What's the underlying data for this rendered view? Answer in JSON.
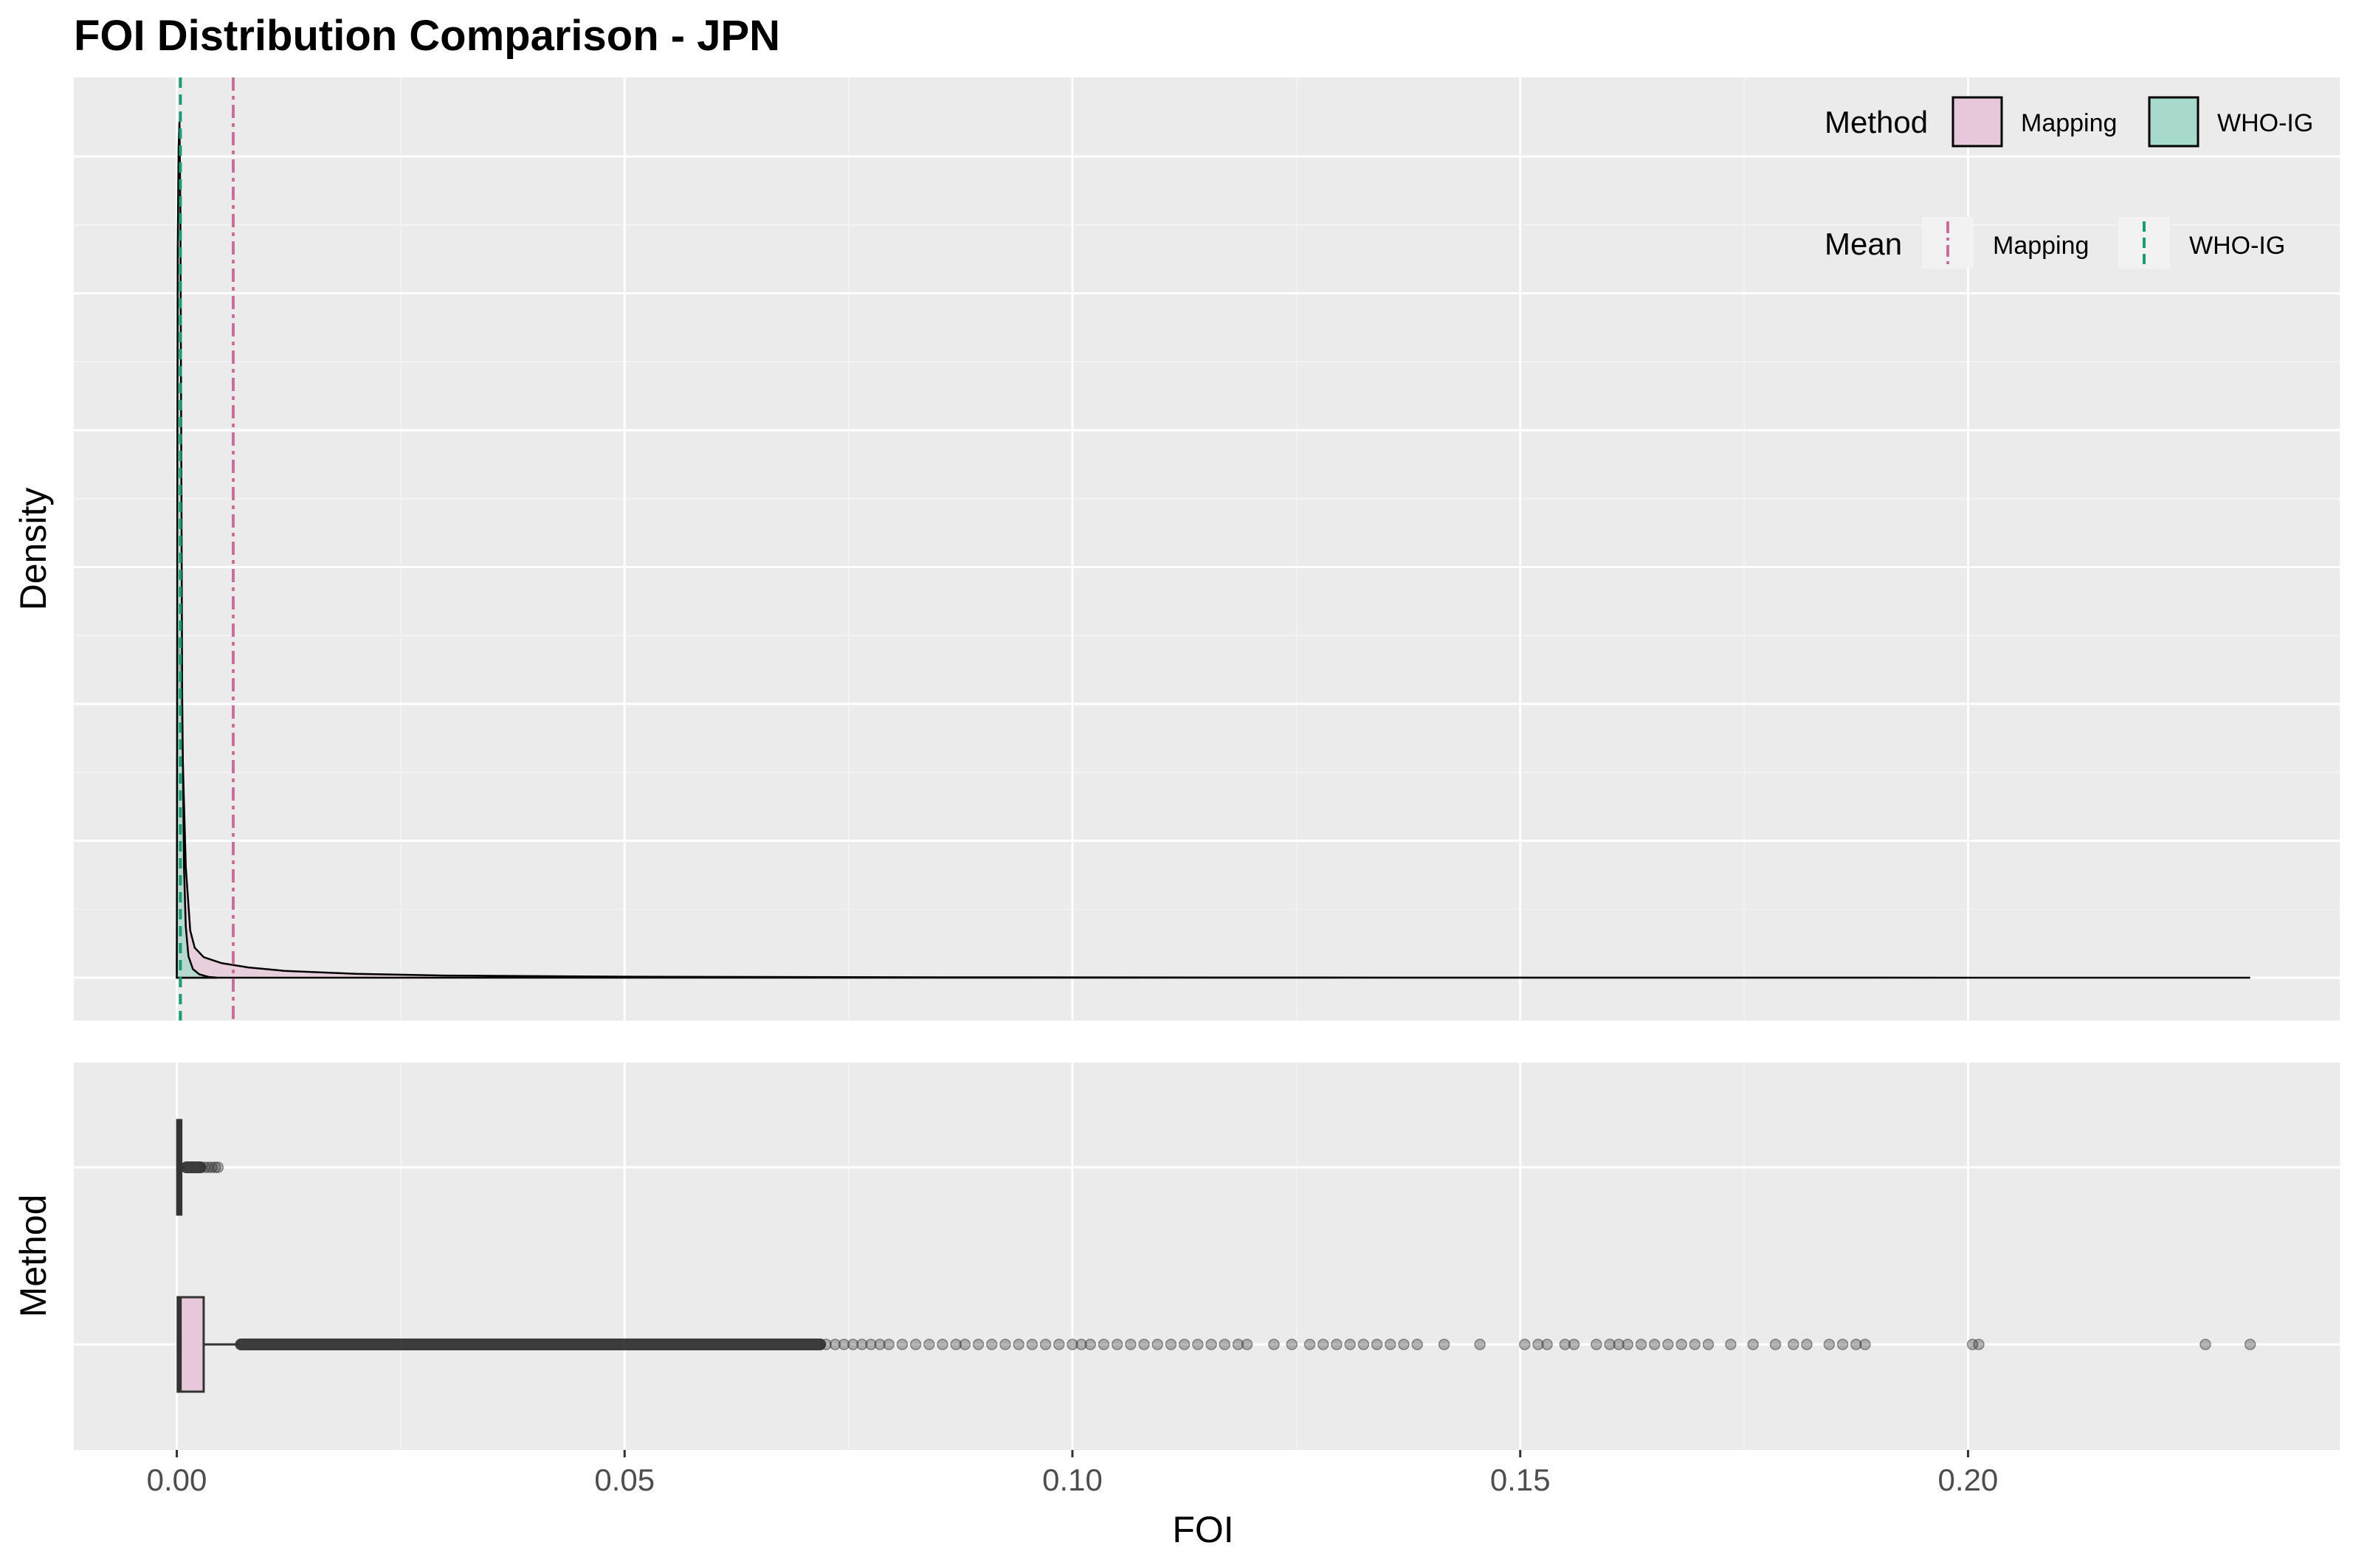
{
  "chart_data": {
    "title": "FOI Distribution Comparison - JPN",
    "density_panel": {
      "type": "area",
      "ylabel": "Density",
      "xlim": [
        -0.0115,
        0.2415
      ],
      "x_breaks": [
        0.0,
        0.05,
        0.1,
        0.15,
        0.2
      ],
      "y_breaks_shown_as_grid_only": true,
      "series": [
        {
          "name": "Mapping",
          "fill": "#e7c8da",
          "curve": [
            {
              "x": 0.0,
              "y": 0.0
            },
            {
              "x": 0.0001,
              "y": 0.4
            },
            {
              "x": 0.0003,
              "y": 0.38
            },
            {
              "x": 0.0006,
              "y": 0.28
            },
            {
              "x": 0.001,
              "y": 0.13
            },
            {
              "x": 0.0015,
              "y": 0.055
            },
            {
              "x": 0.002,
              "y": 0.035
            },
            {
              "x": 0.003,
              "y": 0.024
            },
            {
              "x": 0.005,
              "y": 0.017
            },
            {
              "x": 0.008,
              "y": 0.012
            },
            {
              "x": 0.012,
              "y": 0.008
            },
            {
              "x": 0.02,
              "y": 0.0045
            },
            {
              "x": 0.03,
              "y": 0.0025
            },
            {
              "x": 0.05,
              "y": 0.0012
            },
            {
              "x": 0.08,
              "y": 0.0005
            },
            {
              "x": 0.12,
              "y": 0.0002
            },
            {
              "x": 0.16,
              "y": 0.0001
            },
            {
              "x": 0.2,
              "y": 5e-05
            },
            {
              "x": 0.2315,
              "y": 0.0
            }
          ]
        },
        {
          "name": "WHO-IG",
          "fill": "#a7d9cc",
          "curve": [
            {
              "x": 0.0,
              "y": 0.0
            },
            {
              "x": 5e-05,
              "y": 0.55
            },
            {
              "x": 0.0001,
              "y": 0.85
            },
            {
              "x": 0.0002,
              "y": 0.97
            },
            {
              "x": 0.0003,
              "y": 1.0
            },
            {
              "x": 0.0004,
              "y": 0.9
            },
            {
              "x": 0.0005,
              "y": 0.62
            },
            {
              "x": 0.0006,
              "y": 0.33
            },
            {
              "x": 0.0008,
              "y": 0.13
            },
            {
              "x": 0.001,
              "y": 0.06
            },
            {
              "x": 0.0013,
              "y": 0.025
            },
            {
              "x": 0.0018,
              "y": 0.01
            },
            {
              "x": 0.0025,
              "y": 0.004
            },
            {
              "x": 0.0035,
              "y": 0.001
            },
            {
              "x": 0.0045,
              "y": 0.0
            }
          ]
        }
      ],
      "means": [
        {
          "name": "Mapping",
          "x": 0.0063,
          "color": "#c96f9e",
          "linetype": "dotdash"
        },
        {
          "name": "WHO-IG",
          "x": 0.0004,
          "color": "#1a9a75",
          "linetype": "dashed"
        }
      ]
    },
    "box_panel": {
      "type": "box",
      "xlabel": "FOI",
      "ylabel": "Method",
      "xlim": [
        -0.0115,
        0.2415
      ],
      "x_tick_labels": [
        "0.00",
        "0.05",
        "0.10",
        "0.15",
        "0.20"
      ],
      "boxes": [
        {
          "name": "Mapping",
          "fill": "#e7c8da",
          "q1": 0.0001,
          "median": 0.0003,
          "q3": 0.003,
          "whisker_low": 0.0,
          "whisker_high": 0.007,
          "dense_outlier_range": [
            0.007,
            0.072
          ],
          "outliers": [
            0.0725,
            0.0735,
            0.0745,
            0.0755,
            0.0765,
            0.0775,
            0.0785,
            0.0795,
            0.081,
            0.0825,
            0.084,
            0.0855,
            0.087,
            0.088,
            0.0895,
            0.091,
            0.0925,
            0.094,
            0.0955,
            0.097,
            0.0985,
            0.1,
            0.101,
            0.102,
            0.1035,
            0.105,
            0.1065,
            0.108,
            0.1095,
            0.111,
            0.1125,
            0.114,
            0.1155,
            0.117,
            0.1185,
            0.1195,
            0.1225,
            0.1245,
            0.1265,
            0.128,
            0.1295,
            0.131,
            0.1325,
            0.134,
            0.1355,
            0.137,
            0.1385,
            0.1415,
            0.1455,
            0.1505,
            0.152,
            0.153,
            0.155,
            0.156,
            0.1585,
            0.16,
            0.161,
            0.162,
            0.1635,
            0.165,
            0.1665,
            0.168,
            0.1695,
            0.171,
            0.1735,
            0.176,
            0.1785,
            0.1805,
            0.182,
            0.1845,
            0.186,
            0.1875,
            0.1885,
            0.2005,
            0.2012,
            0.2265,
            0.2315
          ]
        },
        {
          "name": "WHO-IG",
          "fill": "#a7d9cc",
          "q1": 5e-05,
          "median": 0.0002,
          "q3": 0.0005,
          "whisker_low": 0.0,
          "whisker_high": 0.0009,
          "dense_outlier_range": [
            0.0009,
            0.0028
          ],
          "outliers": [
            0.0031,
            0.0035,
            0.0039,
            0.0043,
            0.0046
          ]
        }
      ]
    },
    "legends": {
      "position": "top-right inside density panel",
      "fill_legend": {
        "title": "Method",
        "items": [
          "Mapping",
          "WHO-IG"
        ],
        "colors": [
          "#e7c8da",
          "#a7d9cc"
        ]
      },
      "mean_legend": {
        "title": "Mean",
        "items": [
          "Mapping",
          "WHO-IG"
        ],
        "colors": [
          "#c96f9e",
          "#1a9a75"
        ]
      }
    },
    "grid": true,
    "theme_background": "#ebebeb"
  }
}
